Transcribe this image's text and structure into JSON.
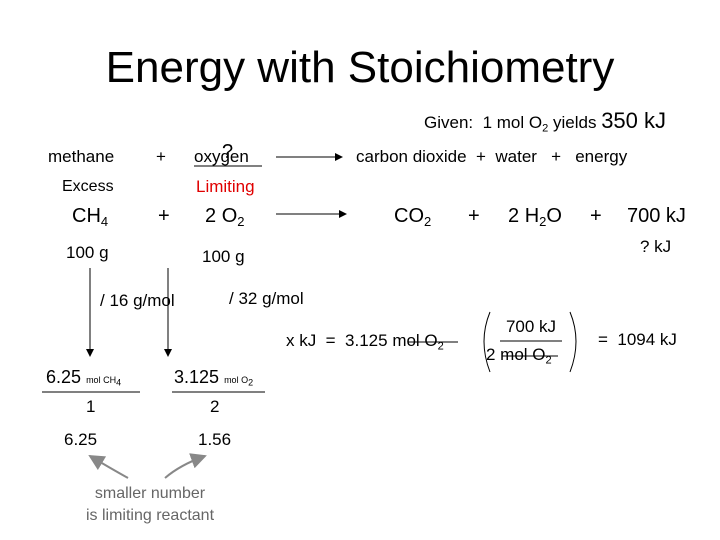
{
  "title": "Energy with Stoichiometry",
  "given": {
    "text": "Given:  1 mol O",
    "sub": "2",
    "yields": " yields ",
    "energy": "350 kJ"
  },
  "word_equation": {
    "reactant1": "methane",
    "plus": "+",
    "reactant2": "oxygen",
    "unknown": "?",
    "products": "carbon dioxide  +  water   +   energy"
  },
  "roles": {
    "reactant1": "Excess",
    "reactant2": "Limiting"
  },
  "equation": {
    "r1": "CH",
    "r1_sub": "4",
    "plus1": "+",
    "r2_coef": "2",
    "r2": "O",
    "r2_sub": "2",
    "p1": "CO",
    "p1_sub": "2",
    "plus2": "+",
    "p2_coef": "2",
    "p2": "H",
    "p2_sub": "2",
    "p2_end": "O",
    "plus3": "+",
    "energy": "700 kJ"
  },
  "masses": {
    "r1": "100 g",
    "r2": "100 g",
    "energy": "? kJ"
  },
  "molar_masses": {
    "r1": "/ 16 g/mol",
    "r2": "/ 32 g/mol"
  },
  "moles": {
    "r1_value": "6.25",
    "r1_unit": "mol CH",
    "r1_unit_sub": "4",
    "r1_coef": "1",
    "r2_value": "3.125",
    "r2_unit": "mol O",
    "r2_unit_sub": "2",
    "r2_coef": "2"
  },
  "ratios": {
    "r1": "6.25",
    "r2": "1.56"
  },
  "energy_calc": {
    "lhs": "x kJ  =  3.125 ",
    "lhs_unit": "mol O",
    "lhs_sub": "2",
    "num": "700 kJ",
    "den": "2 mol O",
    "den_sub": "2",
    "result": "=  1094 kJ"
  },
  "note": [
    "smaller number",
    "is limiting reactant"
  ]
}
